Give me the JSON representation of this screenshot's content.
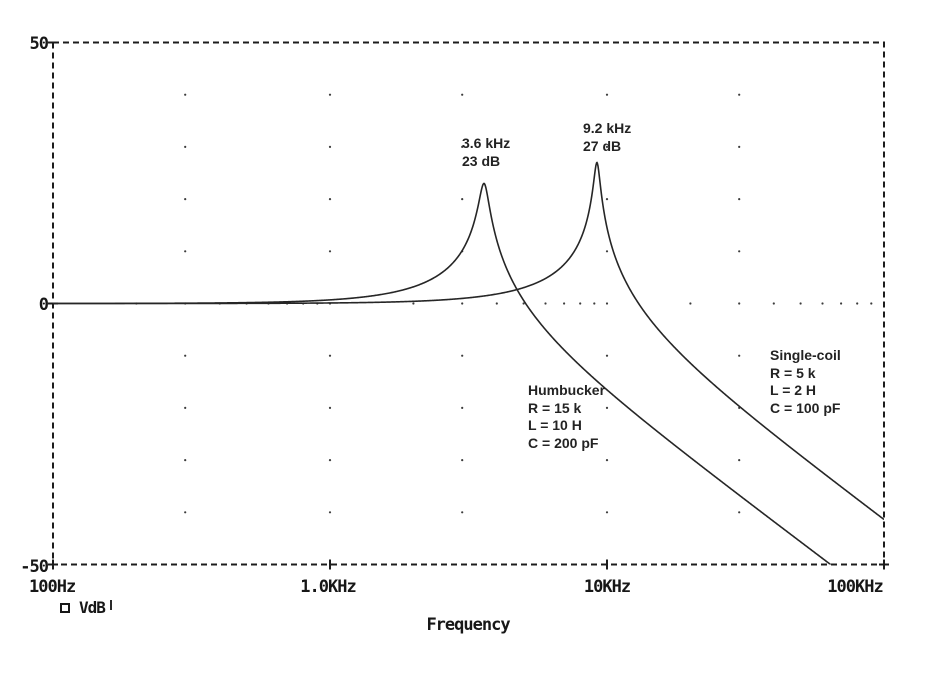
{
  "chart_data": {
    "type": "line",
    "title": "",
    "xlabel": "Frequency",
    "x_axis": {
      "scale": "log",
      "min_hz": 100,
      "max_hz": 100000,
      "ticks": [
        {
          "hz": 100,
          "label": "100Hz"
        },
        {
          "hz": 1000,
          "label": "1.0KHz"
        },
        {
          "hz": 10000,
          "label": "10KHz"
        },
        {
          "hz": 100000,
          "label": "100KHz"
        }
      ]
    },
    "y_axis": {
      "unit": "dB",
      "min": -50,
      "max": 50,
      "ticks": [
        {
          "db": 50,
          "label": "50"
        },
        {
          "db": 0,
          "label": "0"
        },
        {
          "db": -50,
          "label": "-50"
        }
      ]
    },
    "legend": {
      "marker": "open-square",
      "trace_label": "VdB"
    },
    "series": [
      {
        "name": "Humbucker",
        "model": "series-RLC-resonance",
        "resonance_hz": 3600,
        "peak_db": 23,
        "low_freq_level_db": 0,
        "rolloff_db_per_decade": -40,
        "peak_annotation": [
          "3.6 kHz",
          "23 dB"
        ],
        "component_label": [
          "Humbucker",
          "R = 15 k",
          "L = 10 H",
          "C = 200 pF"
        ]
      },
      {
        "name": "Single-coil",
        "model": "series-RLC-resonance",
        "resonance_hz": 9200,
        "peak_db": 27,
        "low_freq_level_db": 0,
        "rolloff_db_per_decade": -40,
        "peak_annotation": [
          "9.2 kHz",
          "27 dB"
        ],
        "component_label": [
          "Single-coil",
          "R = 5 k",
          "L = 2 H",
          "C = 100 pF"
        ]
      }
    ],
    "grid": {
      "dot_columns_hz": [
        300,
        1000,
        3000,
        10000,
        30000
      ],
      "dot_rows_db": [
        40,
        30,
        20,
        10,
        -10,
        -20,
        -30,
        -40
      ],
      "zero_line_minor_dots": "multiples 2-9 of each decade plus decades"
    },
    "colors": {
      "line": "#262626",
      "border": "#1c1c1c",
      "grid_dot": "#3c3c3c",
      "text": "#171717"
    }
  }
}
